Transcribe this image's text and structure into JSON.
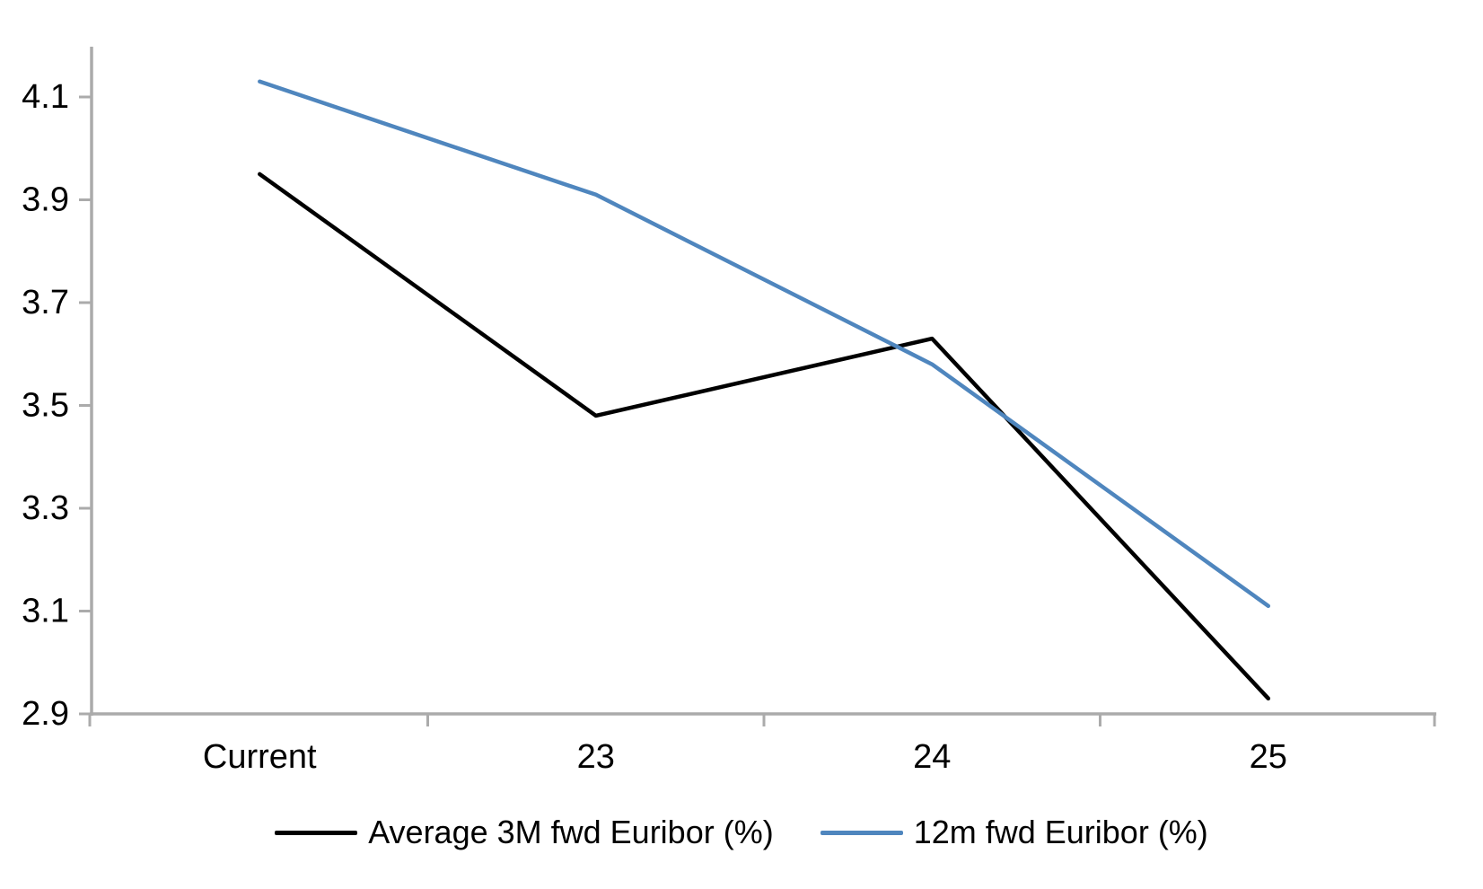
{
  "chart_data": {
    "type": "line",
    "categories": [
      "Current",
      "23",
      "24",
      "25"
    ],
    "series": [
      {
        "name": "Average 3M fwd Euribor (%)",
        "color": "#000000",
        "values": [
          3.95,
          3.48,
          3.63,
          2.93
        ]
      },
      {
        "name": "12m fwd Euribor (%)",
        "color": "#4F86BE",
        "values": [
          4.13,
          3.91,
          3.58,
          3.11
        ]
      }
    ],
    "title": "",
    "xlabel": "",
    "ylabel": "",
    "ylim": [
      2.9,
      4.2
    ],
    "yticks": [
      2.9,
      3.1,
      3.3,
      3.5,
      3.7,
      3.9,
      4.1
    ],
    "grid": false,
    "legend_position": "bottom"
  },
  "colors": {
    "axis_line": "#ABABAB",
    "tick_text": "#000000",
    "background": "#FFFFFF"
  }
}
